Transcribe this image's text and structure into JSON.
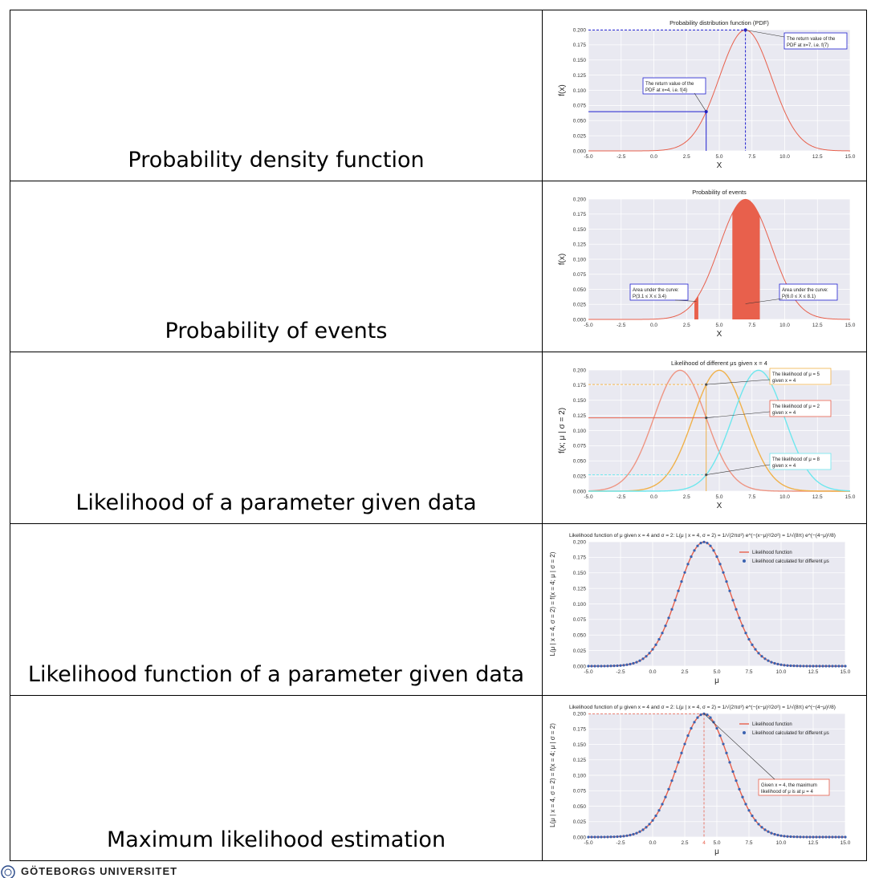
{
  "rows": [
    {
      "label": "Probability density function"
    },
    {
      "label": "Probability of events"
    },
    {
      "label": "Likelihood of a parameter given data"
    },
    {
      "label": "Likelihood function of a parameter given data"
    },
    {
      "label": "Maximum likelihood estimation"
    }
  ],
  "footer": {
    "text": "GÖTEBORGS UNIVERSITET"
  },
  "colors": {
    "plot_bg": "#e9e9f1",
    "grid": "#ffffff",
    "red": "#e8604c",
    "blue": "#1f1fcf",
    "orange": "#f0b14a",
    "cyan": "#6ee7ee",
    "salmon": "#ee9583",
    "dots": "#3a62b0"
  },
  "chart_data": [
    {
      "type": "line",
      "title": "Probability distribution function (PDF)",
      "xlabel": "X",
      "ylabel": "f(x)",
      "xlim": [
        -5,
        15
      ],
      "ylim": [
        0,
        0.2
      ],
      "xticks": [
        "-5.0",
        "-2.5",
        "0.0",
        "2.5",
        "5.0",
        "7.5",
        "10.0",
        "12.5",
        "15.0"
      ],
      "yticks": [
        "0.000",
        "0.025",
        "0.050",
        "0.075",
        "0.100",
        "0.125",
        "0.150",
        "0.175",
        "0.200"
      ],
      "series": [
        {
          "mu": 7,
          "sigma": 2
        }
      ],
      "markers": [
        {
          "x": 4,
          "y": 0.0648
        },
        {
          "x": 7,
          "y": 0.1995
        }
      ],
      "annotations": [
        "The return value of the PDF at x=4, i.e. f(4)",
        "The return value of the PDF at x=7, i.e. f(7)"
      ]
    },
    {
      "type": "area",
      "title": "Probability of events",
      "xlabel": "X",
      "ylabel": "f(x)",
      "xlim": [
        -5,
        15
      ],
      "ylim": [
        0,
        0.2
      ],
      "xticks": [
        "-5.0",
        "-2.5",
        "0.0",
        "2.5",
        "5.0",
        "7.5",
        "10.0",
        "12.5",
        "15.0"
      ],
      "yticks": [
        "0.000",
        "0.025",
        "0.050",
        "0.075",
        "0.100",
        "0.125",
        "0.150",
        "0.175",
        "0.200"
      ],
      "series": [
        {
          "mu": 7,
          "sigma": 2
        }
      ],
      "shaded": [
        [
          3.1,
          3.4
        ],
        [
          6.0,
          8.1
        ]
      ],
      "annotations": [
        "Area under the curve:",
        "P(3.1 ≤ X ≤ 3.4)",
        "Area under the curve:",
        "P(6.0 ≤ X ≤ 8.1)"
      ]
    },
    {
      "type": "line",
      "title": "Likelihood of different μs given x = 4",
      "xlabel": "X",
      "ylabel": "f(x; μ | σ = 2)",
      "xlim": [
        -5,
        15
      ],
      "ylim": [
        0,
        0.2
      ],
      "xticks": [
        "-5.0",
        "-2.5",
        "0.0",
        "2.5",
        "5.0",
        "7.5",
        "10.0",
        "12.5",
        "15.0"
      ],
      "yticks": [
        "0.000",
        "0.025",
        "0.050",
        "0.075",
        "0.100",
        "0.125",
        "0.150",
        "0.175",
        "0.200"
      ],
      "series": [
        {
          "mu": 2,
          "sigma": 2
        },
        {
          "mu": 5,
          "sigma": 2
        },
        {
          "mu": 8,
          "sigma": 2
        }
      ],
      "markers": [
        {
          "x": 4,
          "y": 0.176
        },
        {
          "x": 4,
          "y": 0.121
        },
        {
          "x": 4,
          "y": 0.027
        }
      ],
      "annotations": [
        "The likelihood of μ = 5 given x = 4",
        "The likelihood of μ = 2 given x = 4",
        "The likelihood of μ = 8 given x = 4"
      ]
    },
    {
      "type": "line",
      "title": "Likelihood function of μ given x = 4 and σ = 2: L(μ | x = 4, σ = 2) = 1/√(2πσ²) e^(−(x−μ)²/2σ²) = 1/√(8π) e^(−(4−μ)²/8)",
      "xlabel": "μ",
      "ylabel": "L(μ | x = 4, σ = 2) = f(x = 4; μ | σ = 2)",
      "xlim": [
        -5,
        15
      ],
      "ylim": [
        0,
        0.2
      ],
      "xticks": [
        "-5.0",
        "-2.5",
        "0.0",
        "2.5",
        "5.0",
        "7.5",
        "10.0",
        "12.5",
        "15.0"
      ],
      "yticks": [
        "0.000",
        "0.025",
        "0.050",
        "0.075",
        "0.100",
        "0.125",
        "0.150",
        "0.175",
        "0.200"
      ],
      "series": [
        {
          "name": "Likelihood function",
          "mu": 4,
          "sigma": 2
        },
        {
          "name": "Likelihood calculated for different μs",
          "mu": 4,
          "sigma": 2,
          "step": 0.25
        }
      ]
    },
    {
      "type": "line",
      "title": "Likelihood function of μ given x = 4 and σ = 2: L(μ | x = 4, σ = 2) = 1/√(2πσ²) e^(−(x−μ)²/2σ²) = 1/√(8π) e^(−(4−μ)²/8)",
      "xlabel": "μ",
      "ylabel": "L(μ | x = 4, σ = 2) = f(x = 4; μ | σ = 2)",
      "xlim": [
        -5,
        15
      ],
      "ylim": [
        0,
        0.2
      ],
      "xticks": [
        "-5.0",
        "-2.5",
        "0.0",
        "2.5",
        "5.0",
        "7.5",
        "10.0",
        "12.5",
        "15.0"
      ],
      "yticks": [
        "0.000",
        "0.025",
        "0.050",
        "0.075",
        "0.100",
        "0.125",
        "0.150",
        "0.175",
        "0.200"
      ],
      "series": [
        {
          "name": "Likelihood function",
          "mu": 4,
          "sigma": 2
        },
        {
          "name": "Likelihood calculated for different μs",
          "mu": 4,
          "sigma": 2,
          "step": 0.25
        }
      ],
      "markers": [
        {
          "x": 4,
          "y": 0.1995
        }
      ],
      "annotations": [
        "Given x = 4, the maximum likelihood of μ is at μ = 4"
      ]
    }
  ]
}
